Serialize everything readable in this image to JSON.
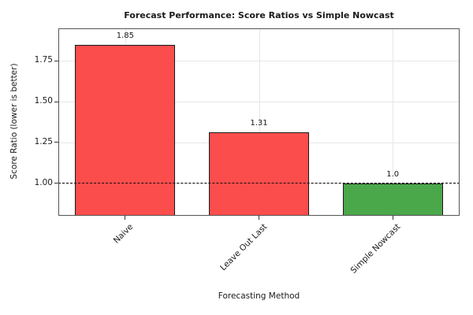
{
  "chart_data": {
    "type": "bar",
    "title": "Forecast Performance: Score Ratios vs Simple Nowcast",
    "xlabel": "Forecasting Method",
    "ylabel": "Score Ratio (lower is better)",
    "categories": [
      "Naive",
      "Leave Out Last",
      "Simple Nowcast"
    ],
    "values": [
      1.85,
      1.31,
      1.0
    ],
    "value_labels": [
      "1.85",
      "1.31",
      "1.0"
    ],
    "series": [
      {
        "name": "Score Ratio",
        "values": [
          1.85,
          1.31,
          1.0
        ]
      }
    ],
    "bar_colors": [
      "#fc4d4d",
      "#fc4d4d",
      "#4aa74a"
    ],
    "bar_edge_color": "#1a1a1a",
    "ylim": [
      0.8,
      1.95
    ],
    "yticks": [
      1.0,
      1.25,
      1.5,
      1.75
    ],
    "ytick_labels": [
      "1.00",
      "1.25",
      "1.50",
      "1.75"
    ],
    "reference_line": {
      "y": 1.0,
      "style": "dashed",
      "color": "#111111"
    },
    "grid": true,
    "grid_color": "#e6e6e6",
    "legend": "none",
    "background": "#ffffff",
    "spine_color": "#555555"
  }
}
